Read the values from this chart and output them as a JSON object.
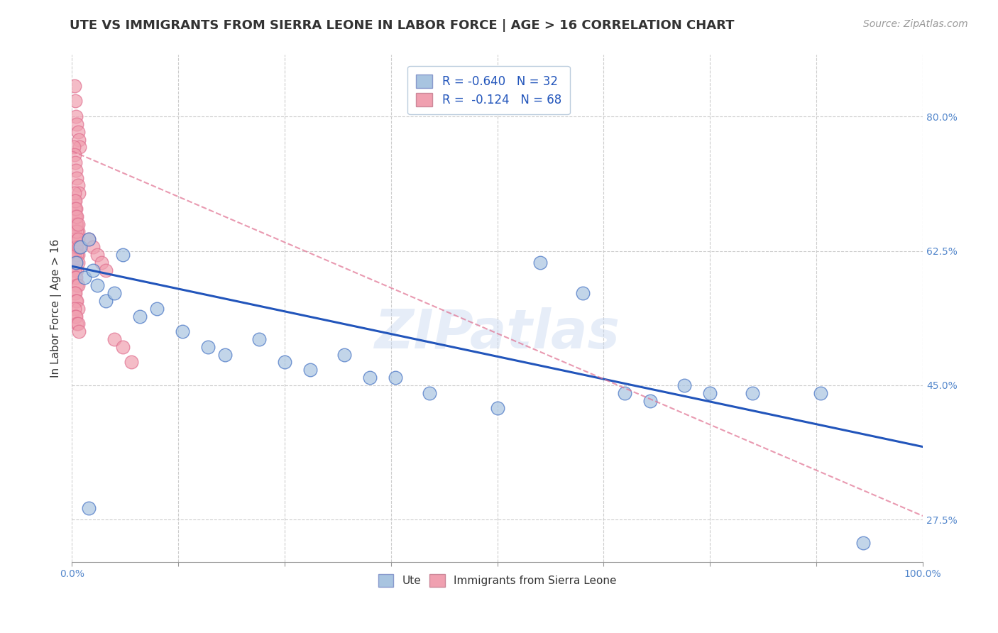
{
  "title": "UTE VS IMMIGRANTS FROM SIERRA LEONE IN LABOR FORCE | AGE > 16 CORRELATION CHART",
  "source_text": "Source: ZipAtlas.com",
  "ylabel": "In Labor Force | Age > 16",
  "watermark": "ZIPatlas",
  "legend_entries": [
    {
      "label": "R = -0.640   N = 32",
      "color": "#a8c4e0"
    },
    {
      "label": "R =  -0.124   N = 68",
      "color": "#f0a0b0"
    }
  ],
  "bottom_legend": [
    "Ute",
    "Immigrants from Sierra Leone"
  ],
  "xlim": [
    0.0,
    1.0
  ],
  "ylim": [
    0.22,
    0.88
  ],
  "yticks": [
    0.275,
    0.45,
    0.625,
    0.8
  ],
  "ytick_labels": [
    "27.5%",
    "45.0%",
    "62.5%",
    "80.0%"
  ],
  "xticks": [
    0.0,
    0.125,
    0.25,
    0.375,
    0.5,
    0.625,
    0.75,
    0.875,
    1.0
  ],
  "xtick_labels_show": [
    "0.0%",
    "",
    "",
    "",
    "",
    "",
    "",
    "",
    "100.0%"
  ],
  "grid_color": "#cccccc",
  "blue_scatter_x": [
    0.005,
    0.01,
    0.015,
    0.02,
    0.025,
    0.03,
    0.04,
    0.05,
    0.06,
    0.08,
    0.1,
    0.13,
    0.16,
    0.18,
    0.22,
    0.25,
    0.28,
    0.32,
    0.35,
    0.38,
    0.42,
    0.5,
    0.55,
    0.6,
    0.65,
    0.68,
    0.72,
    0.75,
    0.8,
    0.88,
    0.93,
    0.02
  ],
  "blue_scatter_y": [
    0.61,
    0.63,
    0.59,
    0.64,
    0.6,
    0.58,
    0.56,
    0.57,
    0.62,
    0.54,
    0.55,
    0.52,
    0.5,
    0.49,
    0.51,
    0.48,
    0.47,
    0.49,
    0.46,
    0.46,
    0.44,
    0.42,
    0.61,
    0.57,
    0.44,
    0.43,
    0.45,
    0.44,
    0.44,
    0.44,
    0.245,
    0.29
  ],
  "pink_scatter_x": [
    0.003,
    0.004,
    0.005,
    0.006,
    0.007,
    0.008,
    0.009,
    0.002,
    0.003,
    0.004,
    0.005,
    0.006,
    0.007,
    0.008,
    0.003,
    0.004,
    0.005,
    0.006,
    0.007,
    0.003,
    0.004,
    0.005,
    0.006,
    0.007,
    0.003,
    0.004,
    0.005,
    0.006,
    0.003,
    0.004,
    0.005,
    0.006,
    0.007,
    0.003,
    0.004,
    0.005,
    0.006,
    0.007,
    0.003,
    0.004,
    0.005,
    0.006,
    0.007,
    0.008,
    0.003,
    0.004,
    0.005,
    0.006,
    0.007,
    0.003,
    0.004,
    0.005,
    0.006,
    0.007,
    0.008,
    0.003,
    0.004,
    0.005,
    0.006,
    0.007,
    0.02,
    0.025,
    0.03,
    0.035,
    0.04,
    0.05,
    0.06,
    0.07
  ],
  "pink_scatter_y": [
    0.84,
    0.82,
    0.8,
    0.79,
    0.78,
    0.77,
    0.76,
    0.76,
    0.75,
    0.74,
    0.73,
    0.72,
    0.71,
    0.7,
    0.69,
    0.68,
    0.67,
    0.66,
    0.65,
    0.64,
    0.64,
    0.63,
    0.63,
    0.62,
    0.62,
    0.61,
    0.61,
    0.6,
    0.6,
    0.59,
    0.59,
    0.58,
    0.58,
    0.57,
    0.57,
    0.56,
    0.56,
    0.55,
    0.55,
    0.54,
    0.54,
    0.53,
    0.53,
    0.52,
    0.65,
    0.64,
    0.63,
    0.62,
    0.61,
    0.68,
    0.67,
    0.66,
    0.65,
    0.64,
    0.63,
    0.7,
    0.69,
    0.68,
    0.67,
    0.66,
    0.64,
    0.63,
    0.62,
    0.61,
    0.6,
    0.51,
    0.5,
    0.48
  ],
  "blue_line_x": [
    0.0,
    1.0
  ],
  "blue_line_y": [
    0.605,
    0.37
  ],
  "pink_line_x": [
    0.0,
    1.0
  ],
  "pink_line_y": [
    0.755,
    0.28
  ],
  "blue_color": "#4472c4",
  "pink_color": "#e07090",
  "blue_scatter_color": "#a8c4e0",
  "pink_scatter_color": "#f0a0b0",
  "blue_line_color": "#2255bb",
  "pink_line_color": "#e07090",
  "background_color": "#ffffff",
  "title_fontsize": 13,
  "axis_label_fontsize": 11,
  "tick_fontsize": 10,
  "source_fontsize": 10
}
